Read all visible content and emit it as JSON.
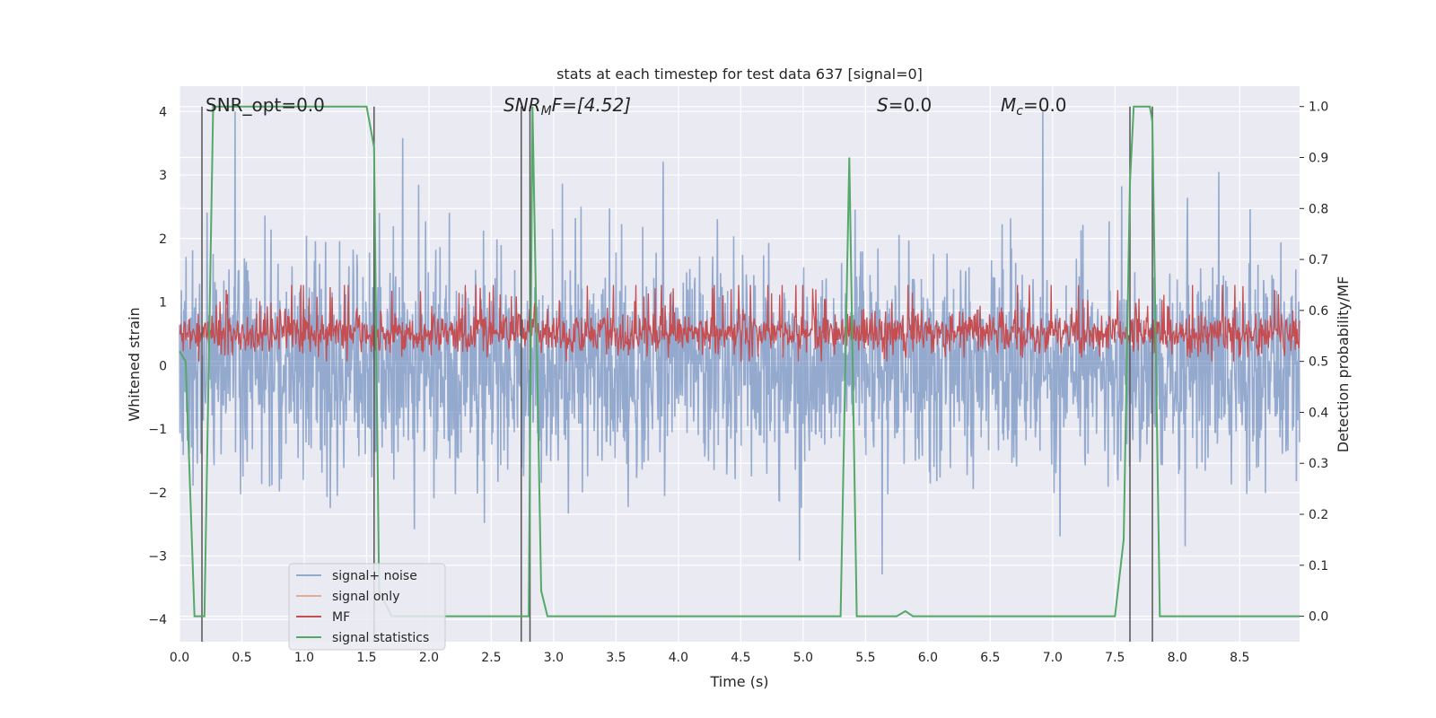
{
  "chart_data": {
    "type": "line",
    "title": "stats at each timestep for test data 637 [signal=0]",
    "xlabel": "Time (s)",
    "ylabel_left": "Whitened strain",
    "ylabel_right": "Detection probability/MF",
    "xlim": [
      0.0,
      8.98
    ],
    "ylim_left": [
      -4.35,
      4.4
    ],
    "ylim_right": [
      -0.05,
      1.04
    ],
    "x_ticks": [
      "0.0",
      "0.5",
      "1.0",
      "1.5",
      "2.0",
      "2.5",
      "3.0",
      "3.5",
      "4.0",
      "4.5",
      "5.0",
      "5.5",
      "6.0",
      "6.5",
      "7.0",
      "7.5",
      "8.0",
      "8.5"
    ],
    "y_ticks_left": [
      "−4",
      "−3",
      "−2",
      "−1",
      "0",
      "1",
      "2",
      "3",
      "4"
    ],
    "y_ticks_right": [
      "0.0",
      "0.1",
      "0.2",
      "0.3",
      "0.4",
      "0.5",
      "0.6",
      "0.7",
      "0.8",
      "0.9",
      "1.0"
    ],
    "grid": true,
    "legend_position": "lower-left",
    "annotations": {
      "snr_opt": "SNR_opt=0.0",
      "snr_mf_main": "SNR",
      "snr_mf_sub": "M",
      "snr_mf_rest": "F=[4.52]",
      "s_main": "S",
      "s_rest": "=0.0",
      "mc_main": "M",
      "mc_sub": "c",
      "mc_rest": "=0.0"
    },
    "series": [
      {
        "name": "signal+ noise",
        "color": "#4c72b0",
        "amplitude_std": 0.8
      },
      {
        "name": "signal only",
        "color": "#dd8452",
        "values": [
          0
        ]
      },
      {
        "name": "MF",
        "color": "#c44e52",
        "range_right_axis": [
          0.5,
          0.65
        ]
      },
      {
        "name": "signal statistics",
        "color": "#55a868",
        "x": [
          0.0,
          0.05,
          0.12,
          0.2,
          0.27,
          0.35,
          0.6,
          1.0,
          1.4,
          1.5,
          1.56,
          1.6,
          1.7,
          1.8,
          2.5,
          2.75,
          2.8,
          2.83,
          2.9,
          2.95,
          3.3,
          4.0,
          5.0,
          5.3,
          5.37,
          5.43,
          5.5,
          5.75,
          5.82,
          5.88,
          6.5,
          7.5,
          7.57,
          7.62,
          7.65,
          7.7,
          7.78,
          7.8,
          7.86,
          8.2,
          8.98
        ],
        "values": [
          0.52,
          0.5,
          0.0,
          0.0,
          1.0,
          1.0,
          1.0,
          1.0,
          1.0,
          1.0,
          0.92,
          0.05,
          0.0,
          0.0,
          0.0,
          0.0,
          0.0,
          1.0,
          0.05,
          0.0,
          0.0,
          0.0,
          0.0,
          0.0,
          0.9,
          0.0,
          0.0,
          0.0,
          0.01,
          0.0,
          0.0,
          0.0,
          0.15,
          0.85,
          1.0,
          1.0,
          1.0,
          0.97,
          0.0,
          0.0,
          0.0
        ]
      }
    ],
    "vertical_lines_x": [
      0.18,
      1.56,
      2.74,
      2.81,
      7.62,
      7.8
    ]
  }
}
